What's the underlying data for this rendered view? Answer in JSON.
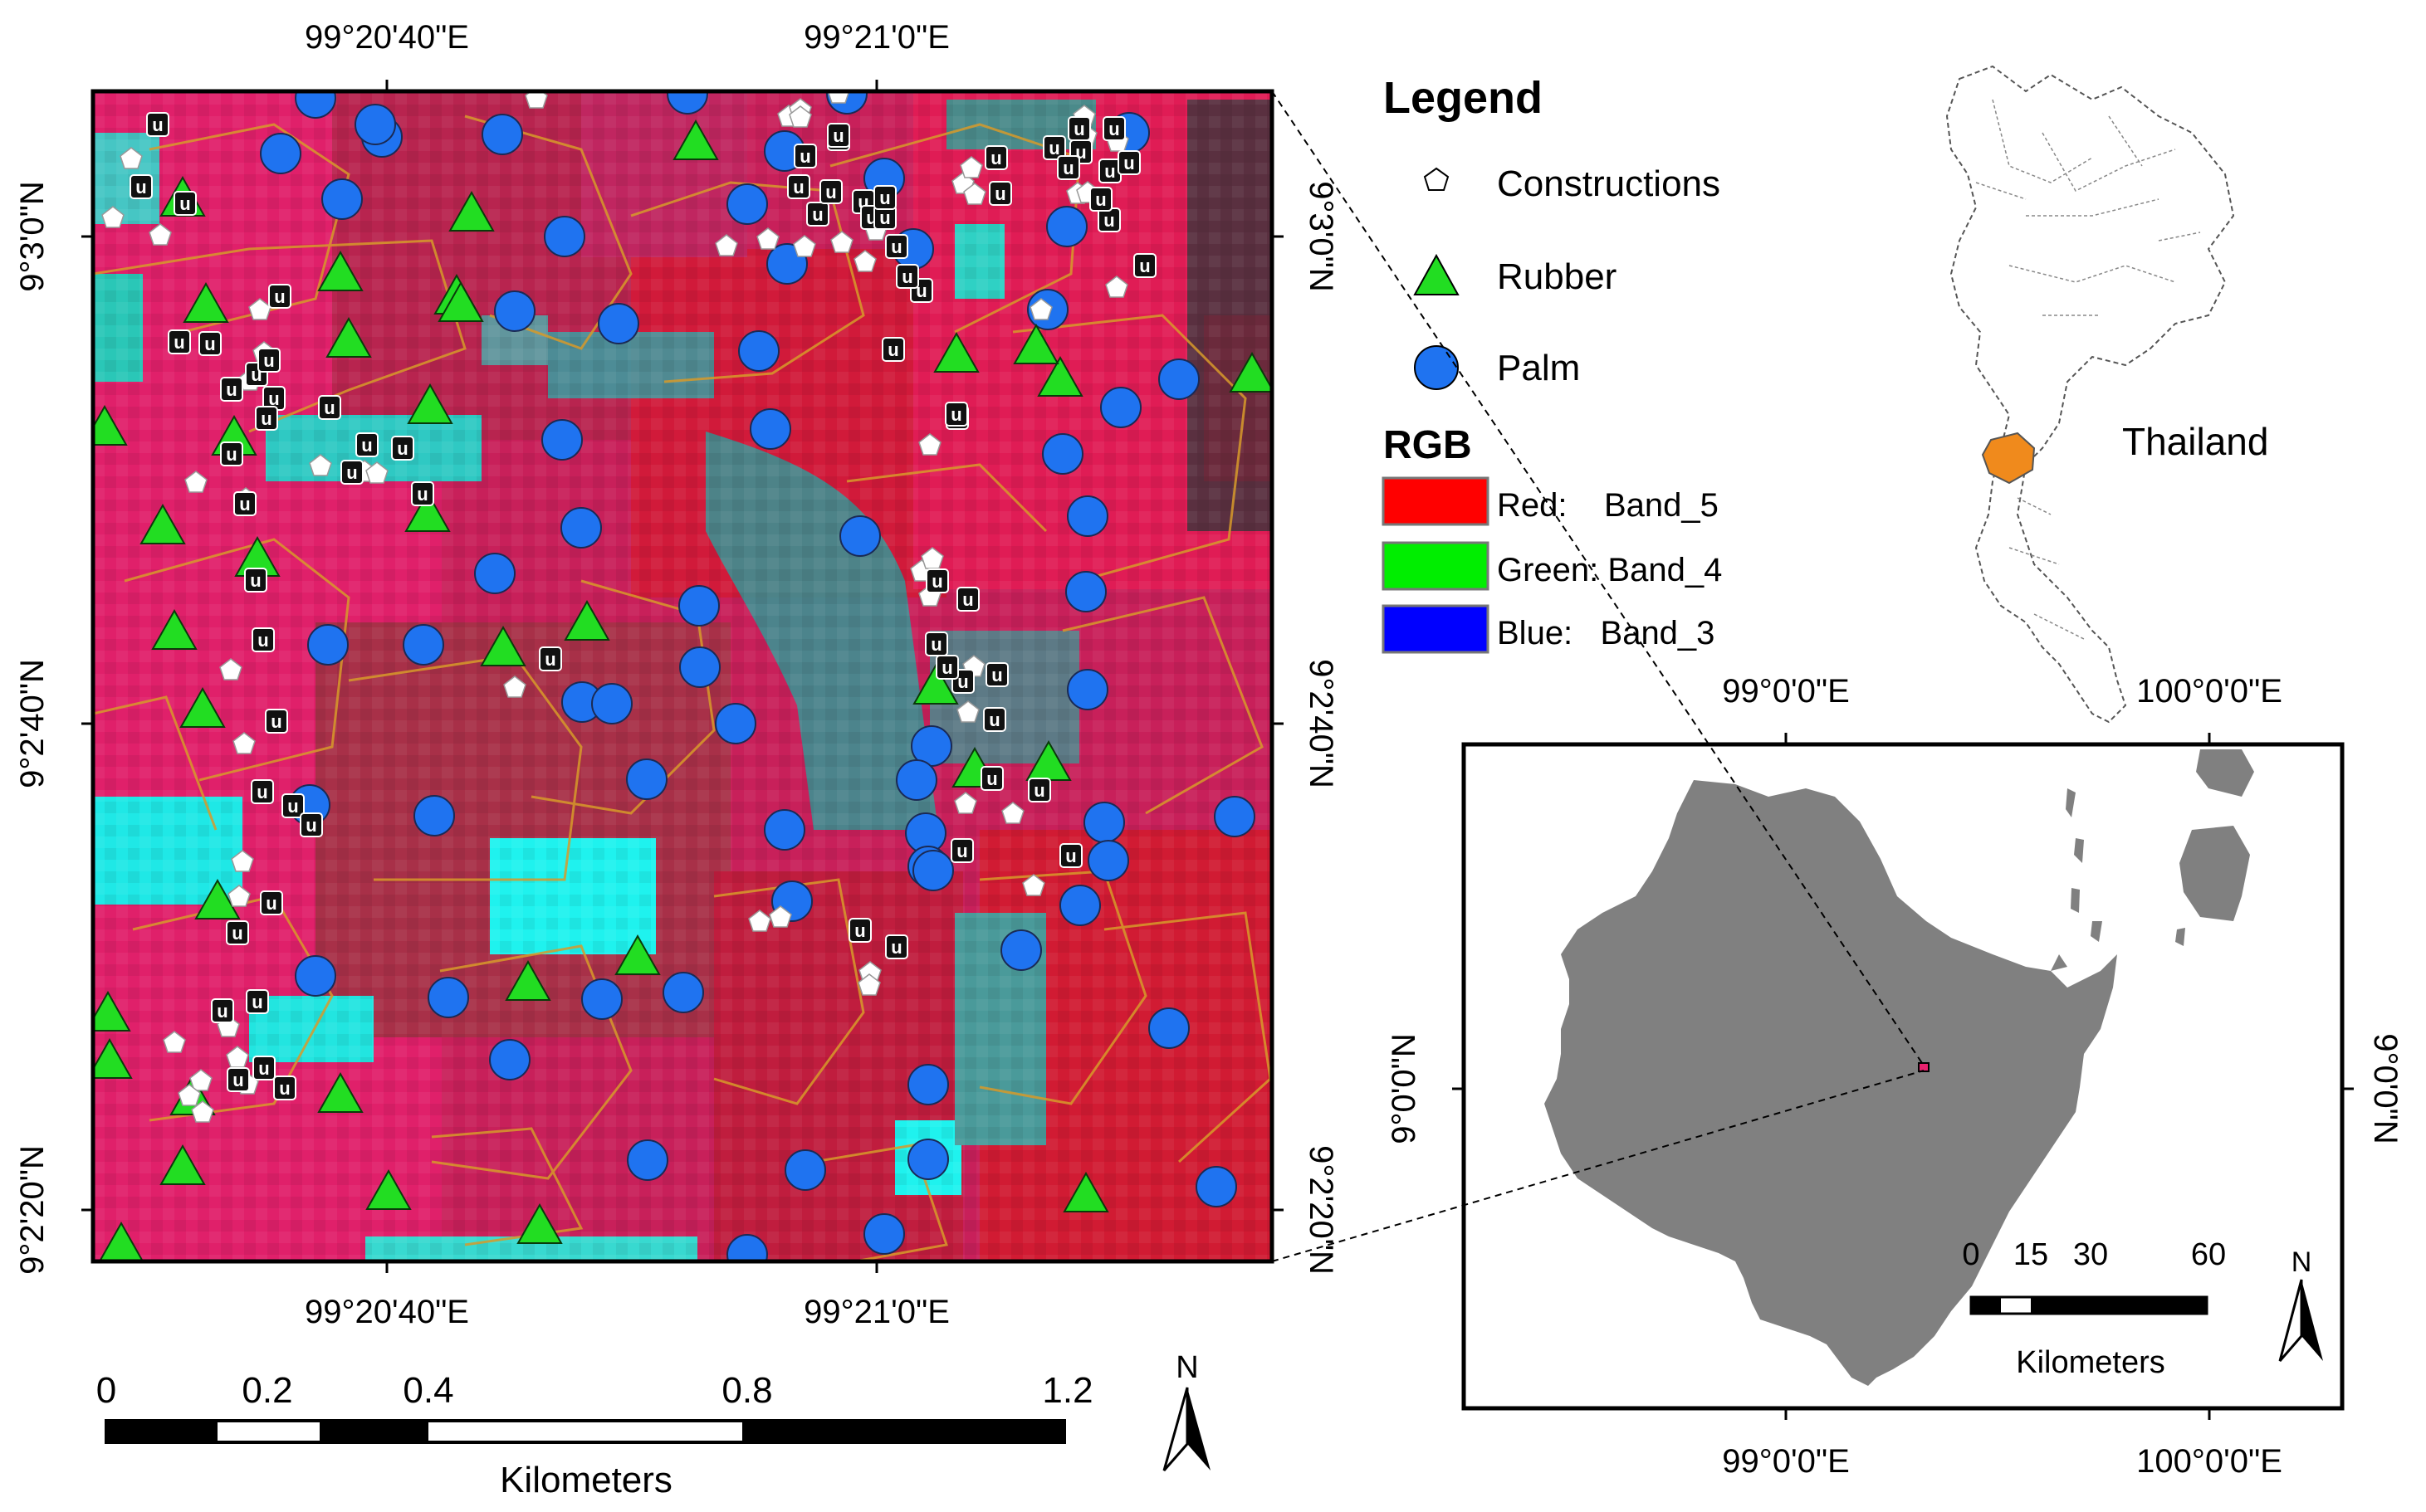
{
  "main_map": {
    "top_ticks": [
      {
        "label": "99°20'40\"E",
        "lon": 99.3444
      },
      {
        "label": "99°21'0\"E",
        "lon": 99.35
      }
    ],
    "bottom_ticks": [
      {
        "label": "99°20'40\"E",
        "lon": 99.3444
      },
      {
        "label": "99°21'0\"E",
        "lon": 99.35
      }
    ],
    "left_ticks": [
      {
        "label": "9°3'0\"N",
        "lat": 9.05
      },
      {
        "label": "9°2'40\"N",
        "lat": 9.0444
      },
      {
        "label": "9°2'20\"N",
        "lat": 9.0389
      }
    ],
    "right_ticks": [
      {
        "label": "9°3'0\"N",
        "lat": 9.05
      },
      {
        "label": "9°2'40\"N",
        "lat": 9.0444
      },
      {
        "label": "9°2'20\"N",
        "lat": 9.0389
      }
    ],
    "image_bands": {
      "red": "Band_5",
      "green": "Band_4",
      "blue": "Band_3"
    },
    "colors": {
      "pink": "#e8226e",
      "red": "#d9122c",
      "cyan": "#1ff2ee",
      "teal": "#3e8f91",
      "parcel_outline": "#d79a2a",
      "palm": "#1f73f0",
      "rubber": "#22dd22"
    }
  },
  "scalebar": {
    "labels": [
      "0",
      "0.2",
      "0.4",
      "0.8",
      "1.2"
    ],
    "unit": "Kilometers",
    "north": "N"
  },
  "legend": {
    "title": "Legend",
    "items": [
      {
        "label": "Constructions",
        "symbol": "pentagon",
        "color": "#ffffff"
      },
      {
        "label": "Rubber",
        "symbol": "triangle",
        "color": "#22dd22"
      },
      {
        "label": "Palm",
        "symbol": "circle",
        "color": "#1f73f0"
      }
    ],
    "rgb_title": "RGB",
    "rgb_items": [
      {
        "label": "Red:    Band_5",
        "color": "#ff0000"
      },
      {
        "label": "Green: Band_4",
        "color": "#00ee00"
      },
      {
        "label": "Blue:   Band_3",
        "color": "#0000ff"
      }
    ],
    "unknown_marker": "u"
  },
  "inset_thailand": {
    "label": "Thailand",
    "highlight_color": "#f08a1c"
  },
  "inset_province": {
    "top_ticks": [
      {
        "label": "99°0'0\"E",
        "lon": 99.0
      },
      {
        "label": "100°0'0\"E",
        "lon": 100.0
      }
    ],
    "bottom_ticks": [
      {
        "label": "99°0'0\"E",
        "lon": 99.0
      },
      {
        "label": "100°0'0\"E",
        "lon": 100.0
      }
    ],
    "left_ticks": [
      {
        "label": "9°0'0\"N",
        "lat": 9.0
      }
    ],
    "right_ticks": [
      {
        "label": "9°0'0\"N",
        "lat": 9.0
      }
    ],
    "scale_labels": [
      "0",
      "15",
      "30",
      "60"
    ],
    "scale_unit": "Kilometers",
    "north": "N",
    "land_color": "#808080"
  }
}
